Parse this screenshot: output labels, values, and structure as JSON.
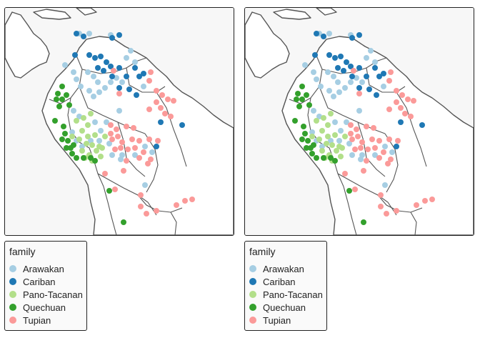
{
  "panels": [
    {
      "id": "left"
    },
    {
      "id": "right"
    }
  ],
  "legend": {
    "title": "family",
    "items": [
      {
        "label": "Arawakan",
        "color": "#a6cee3"
      },
      {
        "label": "Cariban",
        "color": "#1f78b4"
      },
      {
        "label": "Pano-Tacanan",
        "color": "#b2df8a"
      },
      {
        "label": "Quechuan",
        "color": "#33a02c"
      },
      {
        "label": "Tupian",
        "color": "#fb9a99"
      }
    ]
  },
  "colors": {
    "land": "#ffffff",
    "ocean": "#f7f7f7",
    "border": "#555555"
  }
}
